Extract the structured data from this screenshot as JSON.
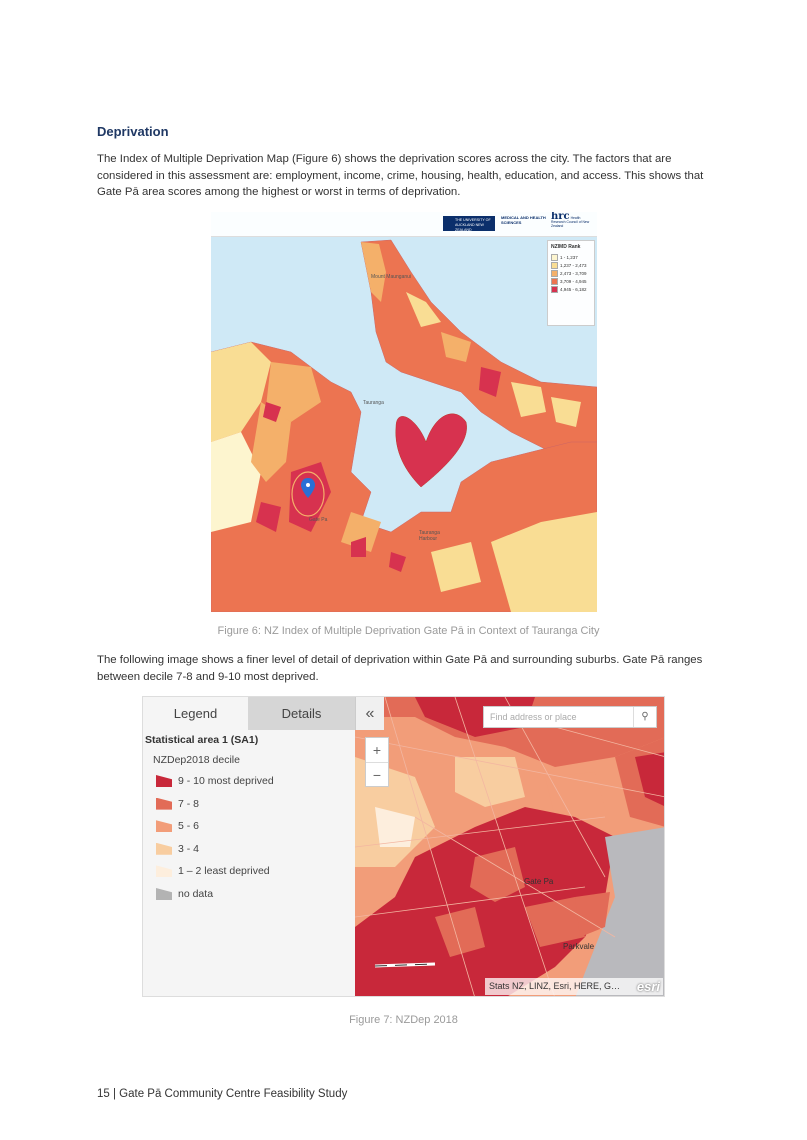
{
  "section": {
    "heading": "Deprivation",
    "paragraph1": "The Index of Multiple Deprivation Map (Figure 6) shows the deprivation scores across the city. The factors that are considered in this assessment are: employment, income, crime, housing, health, education, and access. This shows that Gate Pā area scores among the highest or worst in terms of deprivation.",
    "paragraph2": "The following image shows a finer level of detail of deprivation within Gate Pā and surrounding suburbs. Gate Pā ranges between decile 7-8 and 9-10 most deprived."
  },
  "figure6": {
    "caption": "Figure 6: NZ Index of Multiple Deprivation Gate  Pā  in Context of Tauranga City",
    "logos": {
      "university": "THE UNIVERSITY OF AUCKLAND NEW ZEALAND",
      "faculty": "MEDICAL AND HEALTH SCIENCES",
      "hrc": "hrc",
      "hrc_text": "Health Research Council of New Zealand"
    },
    "legend": {
      "title": "NZIMD Rank",
      "items": [
        {
          "label": "1 - 1,237",
          "color": "#fdf5cf"
        },
        {
          "label": "1,237 - 2,473",
          "color": "#f9dd94"
        },
        {
          "label": "2,473 - 3,709",
          "color": "#f4b06a"
        },
        {
          "label": "3,709 - 4,945",
          "color": "#ec7451"
        },
        {
          "label": "4,945 - 6,182",
          "color": "#d7324f"
        }
      ]
    },
    "map_labels": {
      "mount": "Mount Maunganui",
      "tauranga": "Tauranga",
      "gate_pa": "Gate Pa",
      "harbour": "Tauranga Harbour"
    }
  },
  "figure7": {
    "caption": "Figure 7: NZDep 2018",
    "tabs": {
      "legend": "Legend",
      "details": "Details"
    },
    "collapse_icon": "«",
    "layer_title": "Statistical area 1 (SA1)",
    "legend_title": "NZDep2018 decile",
    "legend_items": [
      {
        "label": "9 - 10 most deprived",
        "color": "#c8283a"
      },
      {
        "label": "7 - 8",
        "color": "#e26b57"
      },
      {
        "label": "5 - 6",
        "color": "#f29d79"
      },
      {
        "label": "3 - 4",
        "color": "#f8cda0"
      },
      {
        "label": "1 – 2 least deprived",
        "color": "#fdeedd"
      },
      {
        "label": "no data",
        "color": "#b3b3b3"
      }
    ],
    "search_placeholder": "Find address or place",
    "zoom_in": "+",
    "zoom_out": "−",
    "attribution": "Stats NZ, LINZ, Esri, HERE, G…",
    "esri": "esri",
    "places": {
      "gate_pa": "Gate Pa",
      "parkvale": "Parkvale"
    }
  },
  "footer": "15 | Gate Pā Community Centre Feasibility Study"
}
